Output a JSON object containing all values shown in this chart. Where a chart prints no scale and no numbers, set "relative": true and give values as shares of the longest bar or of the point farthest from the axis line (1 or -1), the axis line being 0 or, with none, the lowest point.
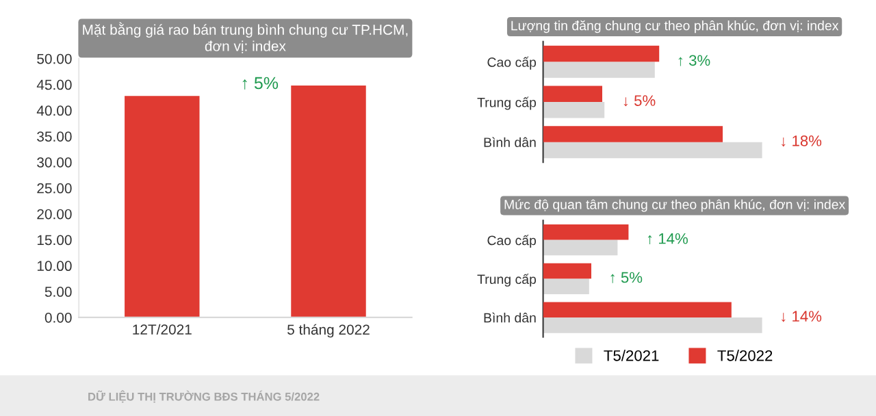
{
  "chart_data": [
    {
      "type": "bar",
      "title": "Mặt bằng giá rao bán trung bình chung cư TP.HCM,\nđơn vị: index",
      "categories": [
        "12T/2021",
        "5 tháng 2022"
      ],
      "values": [
        42.8,
        44.8
      ],
      "color": "#e03a32",
      "ylim": [
        0,
        50
      ],
      "yticks": [
        {
          "value": 0,
          "label": "0.00"
        },
        {
          "value": 5,
          "label": "5.00"
        },
        {
          "value": 10,
          "label": "10.00"
        },
        {
          "value": 15,
          "label": "15.00"
        },
        {
          "value": 20,
          "label": "20.00"
        },
        {
          "value": 25,
          "label": "25.00"
        },
        {
          "value": 30,
          "label": "30.00"
        },
        {
          "value": 35,
          "label": "35.00"
        },
        {
          "value": 40,
          "label": "40.00"
        },
        {
          "value": 45,
          "label": "45.00"
        },
        {
          "value": 50,
          "label": "50.00"
        }
      ],
      "grid": false,
      "annotations": [
        {
          "text": "↑ 5%",
          "x": "5 tháng 2022",
          "y": 45
        },
        "DỮ LIỆU THỊ TRƯỜNG BĐS THÁNG 5/2022"
      ]
    },
    {
      "type": "bar",
      "orientation": "horizontal",
      "relative": true,
      "title": "Lượng tin đăng chung cư theo phân khúc, đơn vị: index",
      "categories": [
        "Cao cấp",
        "Trung cấp",
        "Bình dân"
      ],
      "tick_labels": "y",
      "grid": false,
      "legend": false,
      "series": [
        {
          "color": "#d9d9d9",
          "values": [
            0.51,
            0.28,
            1.0
          ]
        },
        {
          "color": "#e03a32",
          "values": [
            0.53,
            0.27,
            0.82
          ]
        }
      ],
      "annotations": [
        "↑ 3%",
        "↓ 5%",
        "↓ 18%"
      ]
    },
    {
      "type": "bar",
      "orientation": "horizontal",
      "relative": true,
      "title": "Mức độ quan tâm chung cư theo phân khúc, đơn vị: index",
      "categories": [
        "Cao cấp",
        "Trung cấp",
        "Bình dân"
      ],
      "tick_labels": "y",
      "grid": false,
      "legend": "bottom",
      "series": [
        {
          "name": "T5/2021",
          "color": "#d9d9d9",
          "values": [
            0.34,
            0.21,
            1.0
          ]
        },
        {
          "name": "T5/2022",
          "color": "#e03a32",
          "values": [
            0.39,
            0.22,
            0.86
          ]
        }
      ],
      "annotations": [
        "↑ 14%",
        "↑ 5%",
        "↓ 14%"
      ]
    }
  ]
}
